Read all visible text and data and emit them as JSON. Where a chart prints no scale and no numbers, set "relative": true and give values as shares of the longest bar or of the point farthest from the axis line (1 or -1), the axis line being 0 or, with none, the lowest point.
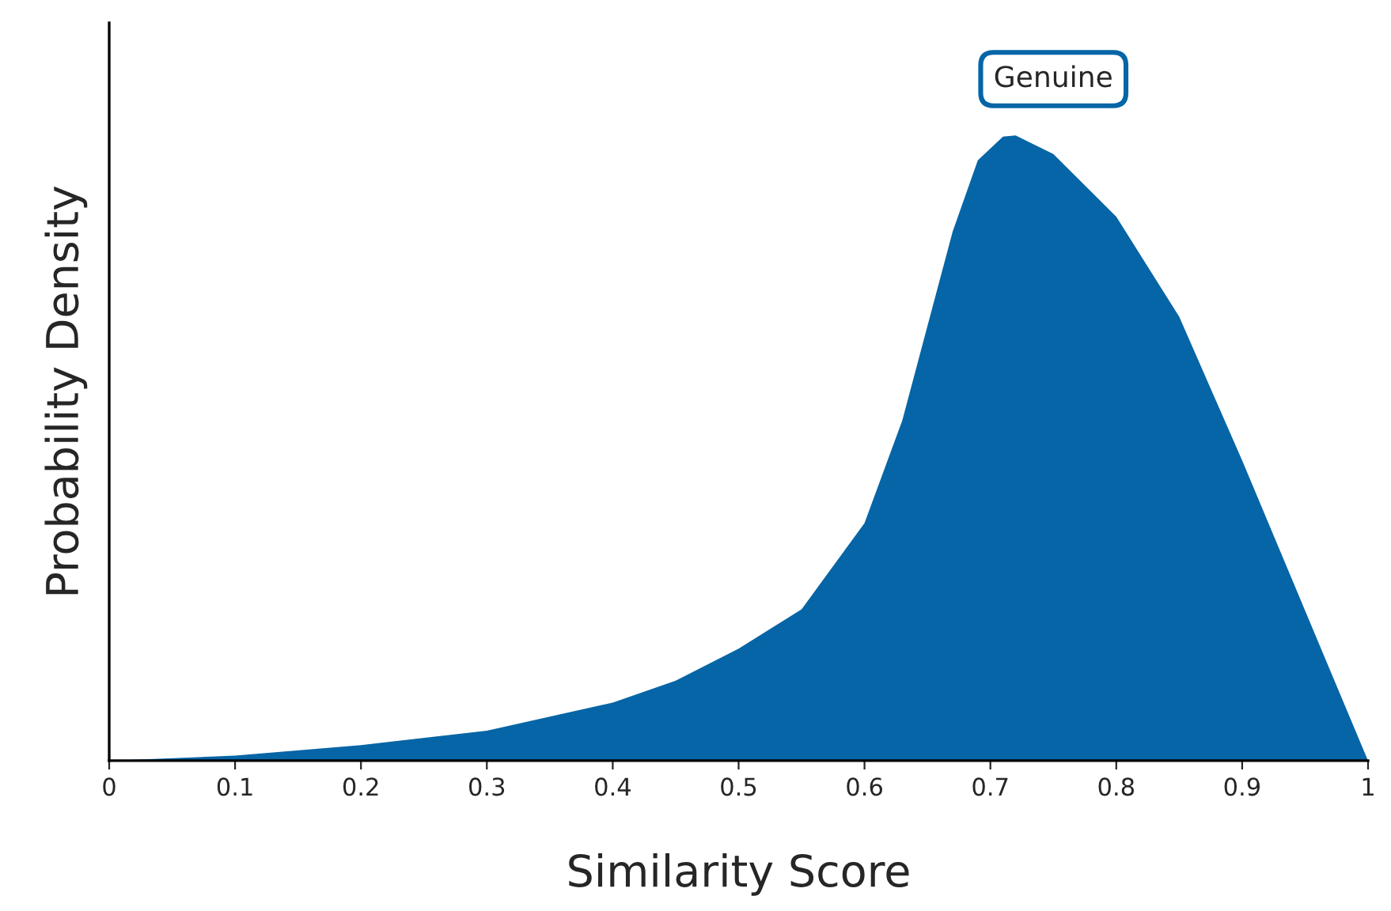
{
  "chart_data": {
    "type": "area",
    "xlabel": "Similarity Score",
    "ylabel": "Probability Density",
    "relative": true,
    "x": [
      0,
      0.1,
      0.2,
      0.3,
      0.4,
      0.45,
      0.5,
      0.55,
      0.6,
      0.63,
      0.65,
      0.67,
      0.69,
      0.71,
      0.72,
      0.75,
      0.8,
      0.85,
      0.9,
      0.95,
      1.0
    ],
    "series": [
      {
        "name": "Genuine",
        "color": "#0565a6",
        "values": [
          0,
          0.008,
          0.025,
          0.048,
          0.093,
          0.128,
          0.179,
          0.242,
          0.38,
          0.544,
          0.695,
          0.846,
          0.96,
          0.998,
          1,
          0.97,
          0.87,
          0.71,
          0.48,
          0.24,
          0
        ]
      }
    ],
    "xlim": [
      0,
      1
    ],
    "xticks": [
      0,
      0.1,
      0.2,
      0.3,
      0.4,
      0.5,
      0.6,
      0.7,
      0.8,
      0.9,
      1
    ],
    "grid": false,
    "legend": false
  }
}
